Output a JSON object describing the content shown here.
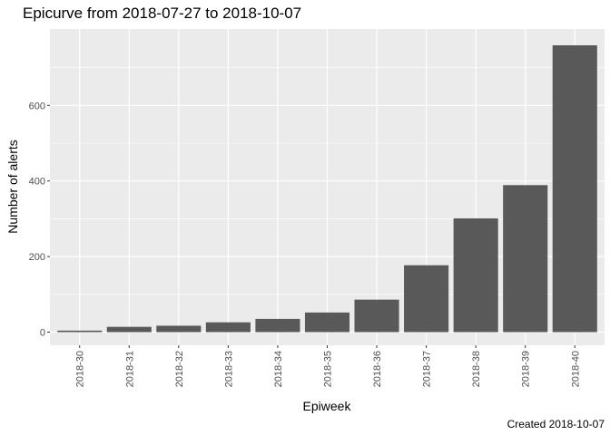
{
  "chart_data": {
    "type": "bar",
    "title": "Epicurve from 2018-07-27 to 2018-10-07",
    "xlabel": "Epiweek",
    "ylabel": "Number of alerts",
    "caption": "Created 2018-10-07",
    "categories": [
      "2018-30",
      "2018-31",
      "2018-32",
      "2018-33",
      "2018-34",
      "2018-35",
      "2018-36",
      "2018-37",
      "2018-38",
      "2018-39",
      "2018-40"
    ],
    "values": [
      4,
      14,
      17,
      26,
      35,
      52,
      86,
      177,
      301,
      389,
      759
    ],
    "ylim": [
      0,
      790
    ],
    "yticks": [
      0,
      200,
      400,
      600
    ],
    "grid": true,
    "colors": {
      "bar": "#595959",
      "panel": "#ebebeb",
      "grid": "#ffffff"
    }
  }
}
